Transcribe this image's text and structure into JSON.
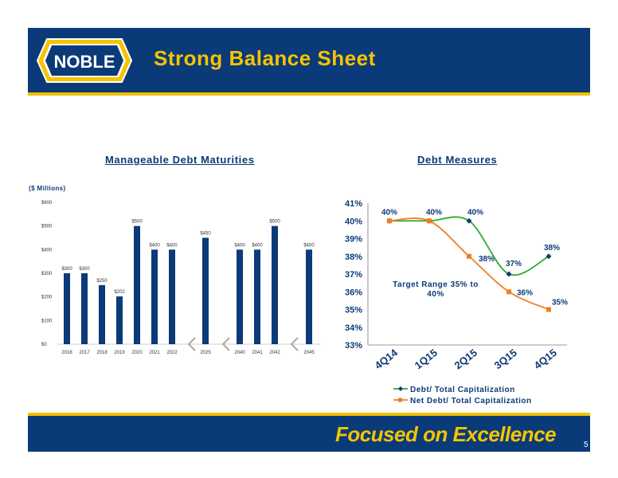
{
  "header": {
    "title": "Strong Balance Sheet",
    "logo_text": "NOBLE"
  },
  "left_panel": {
    "title": "Manageable Debt Maturities",
    "units": "($ Millions)"
  },
  "right_panel": {
    "title": "Debt Measures",
    "note": "Target Range 35% to 40%"
  },
  "footer": {
    "slogan": "Focused on Excellence",
    "page_number": "5"
  },
  "colors": {
    "navy": "#0b3a78",
    "gold": "#f5c400",
    "green": "#2eaa2e",
    "orange": "#ef7e22",
    "gap_marker": "#a9a9a9"
  },
  "chart_data": [
    {
      "type": "bar",
      "categories": [
        "2016",
        "2017",
        "2018",
        "2019",
        "2020",
        "2021",
        "2022",
        "2025",
        "2040",
        "2041",
        "2042",
        "2045"
      ],
      "values": [
        300,
        300,
        250,
        202,
        500,
        400,
        400,
        450,
        400,
        400,
        500,
        400
      ],
      "data_labels": [
        "$300",
        "$300",
        "$250",
        "$202",
        "$500",
        "$400",
        "$400",
        "$450",
        "$400",
        "$400",
        "$500",
        "$400"
      ],
      "y_ticks": [
        "$0",
        "$100",
        "$200",
        "$300",
        "$400",
        "$500",
        "$600"
      ],
      "ylabel": "($ Millions)",
      "ylim": [
        0,
        600
      ],
      "grid": false,
      "title": "Manageable Debt Maturities"
    },
    {
      "type": "line",
      "categories": [
        "4Q14",
        "1Q15",
        "2Q15",
        "3Q15",
        "4Q15"
      ],
      "series": [
        {
          "name": "Debt/ Total Capitalization",
          "values": [
            40,
            40,
            40,
            37,
            38
          ],
          "labels": [
            "40%",
            "40%",
            "40%",
            "37%",
            "38%"
          ]
        },
        {
          "name": "Net Debt/ Total Capitalization",
          "values": [
            40,
            40,
            38,
            36,
            35
          ],
          "labels": [
            "",
            "",
            "38%",
            "36%",
            "35%"
          ]
        }
      ],
      "y_ticks": [
        "33%",
        "34%",
        "35%",
        "36%",
        "37%",
        "38%",
        "39%",
        "40%",
        "41%"
      ],
      "ylim": [
        33,
        41
      ],
      "grid": false,
      "legend": "bottom",
      "title": "Debt Measures"
    }
  ]
}
